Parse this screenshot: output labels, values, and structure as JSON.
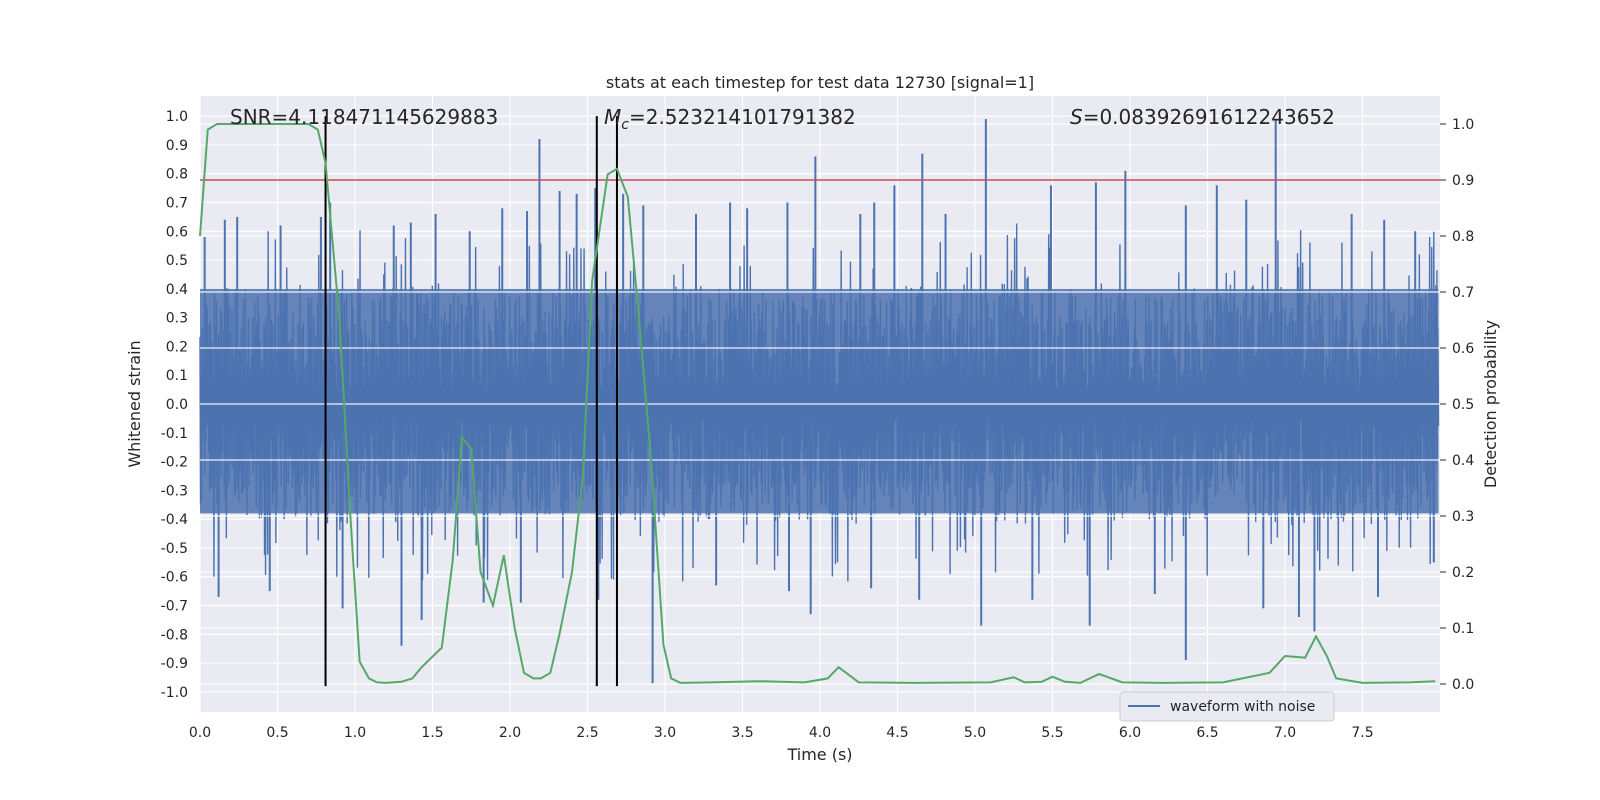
{
  "chart_data": {
    "type": "line",
    "title": "stats at each timestep for test data 12730 [signal=1]",
    "xlabel": "Time (s)",
    "ylabel": "Whitened strain",
    "y2label": "Detection probability",
    "xlim": [
      0.0,
      8.0
    ],
    "ylim": [
      -1.07,
      1.07
    ],
    "y2lim": [
      -0.05,
      1.05
    ],
    "x_ticks": [
      "0.0",
      "0.5",
      "1.0",
      "1.5",
      "2.0",
      "2.5",
      "3.0",
      "3.5",
      "4.0",
      "4.5",
      "5.0",
      "5.5",
      "6.0",
      "6.5",
      "7.0",
      "7.5"
    ],
    "y_ticks": [
      "1.0",
      "0.9",
      "0.8",
      "0.7",
      "0.6",
      "0.5",
      "0.4",
      "0.3",
      "0.2",
      "0.1",
      "0.0",
      "-0.1",
      "-0.2",
      "-0.3",
      "-0.4",
      "-0.5",
      "-0.6",
      "-0.7",
      "-0.8",
      "-0.9",
      "-1.0"
    ],
    "y2_ticks": [
      "1.0",
      "0.9",
      "0.8",
      "0.7",
      "0.6",
      "0.5",
      "0.4",
      "0.3",
      "0.2",
      "0.1",
      "0.0"
    ],
    "grid": true,
    "legend_position": "lower-right",
    "annotations": {
      "snr": "SNR=4.118471145629883",
      "mc_symbol": "M",
      "mc_subscript": "c",
      "mc_value": "=2.523214101791382",
      "s_symbol": "S",
      "s_value": "=0.08392691612243652"
    },
    "threshold": {
      "y2": 0.9,
      "color": "#c44e52"
    },
    "vertical_lines": {
      "x": [
        0.81,
        2.56,
        2.69
      ],
      "y_range": [
        -0.98,
        1.0
      ],
      "color": "#000000"
    },
    "series": [
      {
        "name": "waveform with noise",
        "color": "#4c72b0",
        "description": "dense noisy strain, typical amplitude ±0.4, spikes to ~±0.9",
        "envelope": {
          "x": [
            0.0,
            7.99
          ],
          "lower": -0.38,
          "upper": 0.4
        },
        "spikes": [
          [
            0.03,
            0.58
          ],
          [
            0.16,
            0.64
          ],
          [
            0.24,
            0.65
          ],
          [
            0.52,
            0.62
          ],
          [
            0.78,
            0.65
          ],
          [
            0.84,
            0.7
          ],
          [
            1.25,
            0.62
          ],
          [
            1.36,
            0.63
          ],
          [
            1.52,
            0.66
          ],
          [
            1.74,
            0.6
          ],
          [
            1.95,
            0.68
          ],
          [
            2.11,
            0.67
          ],
          [
            2.19,
            0.92
          ],
          [
            2.32,
            0.74
          ],
          [
            2.43,
            0.73
          ],
          [
            2.55,
            0.75
          ],
          [
            2.73,
            0.73
          ],
          [
            2.86,
            0.69
          ],
          [
            3.2,
            0.66
          ],
          [
            3.42,
            0.7
          ],
          [
            3.53,
            0.68
          ],
          [
            3.79,
            0.7
          ],
          [
            3.97,
            0.86
          ],
          [
            4.26,
            0.66
          ],
          [
            4.35,
            0.7
          ],
          [
            4.48,
            0.76
          ],
          [
            4.66,
            0.87
          ],
          [
            4.81,
            0.66
          ],
          [
            5.07,
            0.99
          ],
          [
            5.49,
            0.76
          ],
          [
            5.78,
            0.77
          ],
          [
            5.97,
            0.81
          ],
          [
            6.36,
            0.69
          ],
          [
            6.56,
            0.76
          ],
          [
            6.75,
            0.71
          ],
          [
            6.94,
            0.99
          ],
          [
            7.43,
            0.66
          ],
          [
            7.64,
            0.64
          ],
          [
            7.84,
            0.6
          ],
          [
            0.12,
            -0.67
          ],
          [
            0.45,
            -0.65
          ],
          [
            0.92,
            -0.71
          ],
          [
            1.3,
            -0.84
          ],
          [
            1.43,
            -0.75
          ],
          [
            1.83,
            -0.69
          ],
          [
            2.07,
            -0.69
          ],
          [
            2.57,
            -0.68
          ],
          [
            2.92,
            -0.97
          ],
          [
            3.33,
            -0.63
          ],
          [
            3.8,
            -0.65
          ],
          [
            3.94,
            -0.73
          ],
          [
            4.33,
            -0.64
          ],
          [
            4.64,
            -0.68
          ],
          [
            5.04,
            -0.77
          ],
          [
            5.37,
            -0.68
          ],
          [
            5.74,
            -0.77
          ],
          [
            6.16,
            -0.66
          ],
          [
            6.36,
            -0.89
          ],
          [
            6.86,
            -0.71
          ],
          [
            7.09,
            -0.74
          ],
          [
            7.19,
            -0.79
          ],
          [
            7.6,
            -0.67
          ],
          [
            7.96,
            -0.55
          ]
        ]
      },
      {
        "name": "detection probability",
        "color": "#55a868",
        "axis": "right",
        "points": [
          [
            0.0,
            0.8
          ],
          [
            0.05,
            0.99
          ],
          [
            0.11,
            1.0
          ],
          [
            0.4,
            1.0
          ],
          [
            0.7,
            1.0
          ],
          [
            0.76,
            0.99
          ],
          [
            0.81,
            0.93
          ],
          [
            0.9,
            0.65
          ],
          [
            0.97,
            0.3
          ],
          [
            1.03,
            0.04
          ],
          [
            1.09,
            0.01
          ],
          [
            1.14,
            0.003
          ],
          [
            1.2,
            0.002
          ],
          [
            1.3,
            0.004
          ],
          [
            1.37,
            0.01
          ],
          [
            1.43,
            0.03
          ],
          [
            1.56,
            0.065
          ],
          [
            1.63,
            0.22
          ],
          [
            1.69,
            0.44
          ],
          [
            1.75,
            0.42
          ],
          [
            1.81,
            0.2
          ],
          [
            1.89,
            0.14
          ],
          [
            1.96,
            0.23
          ],
          [
            2.03,
            0.1
          ],
          [
            2.09,
            0.02
          ],
          [
            2.15,
            0.01
          ],
          [
            2.2,
            0.01
          ],
          [
            2.26,
            0.02
          ],
          [
            2.32,
            0.09
          ],
          [
            2.4,
            0.2
          ],
          [
            2.47,
            0.37
          ],
          [
            2.53,
            0.72
          ],
          [
            2.63,
            0.91
          ],
          [
            2.69,
            0.92
          ],
          [
            2.76,
            0.87
          ],
          [
            2.83,
            0.66
          ],
          [
            2.91,
            0.4
          ],
          [
            2.99,
            0.07
          ],
          [
            3.04,
            0.01
          ],
          [
            3.1,
            0.002
          ],
          [
            3.3,
            0.003
          ],
          [
            3.6,
            0.005
          ],
          [
            3.9,
            0.003
          ],
          [
            4.05,
            0.01
          ],
          [
            4.12,
            0.03
          ],
          [
            4.25,
            0.003
          ],
          [
            4.6,
            0.002
          ],
          [
            5.1,
            0.003
          ],
          [
            5.25,
            0.012
          ],
          [
            5.32,
            0.003
          ],
          [
            5.43,
            0.004
          ],
          [
            5.5,
            0.013
          ],
          [
            5.58,
            0.004
          ],
          [
            5.68,
            0.002
          ],
          [
            5.8,
            0.018
          ],
          [
            5.95,
            0.003
          ],
          [
            6.2,
            0.002
          ],
          [
            6.6,
            0.003
          ],
          [
            6.9,
            0.02
          ],
          [
            7.0,
            0.05
          ],
          [
            7.13,
            0.047
          ],
          [
            7.2,
            0.085
          ],
          [
            7.27,
            0.05
          ],
          [
            7.33,
            0.01
          ],
          [
            7.5,
            0.002
          ],
          [
            7.8,
            0.003
          ],
          [
            7.97,
            0.005
          ]
        ]
      }
    ]
  }
}
